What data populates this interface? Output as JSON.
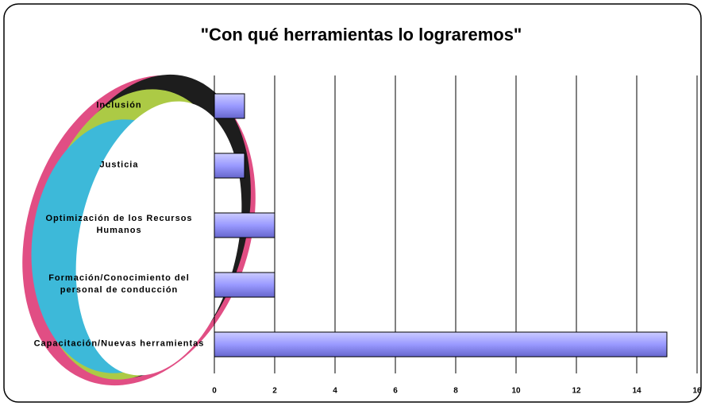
{
  "chart_data": {
    "type": "bar",
    "orientation": "horizontal",
    "title": "\"Con qué herramientas lo lograremos\"",
    "categories": [
      "Inclusión",
      "Justicia",
      "Optimización de los Recursos Humanos",
      "Formación/Conocimiento del personal de conducción",
      "Capacitación/Nuevas herramientas"
    ],
    "values": [
      1,
      1,
      2,
      2,
      15
    ],
    "color": "#9999ff",
    "xlim": [
      0,
      16
    ],
    "xticks": [
      0,
      2,
      4,
      6,
      8,
      10,
      12,
      14,
      16
    ],
    "grid": true
  }
}
